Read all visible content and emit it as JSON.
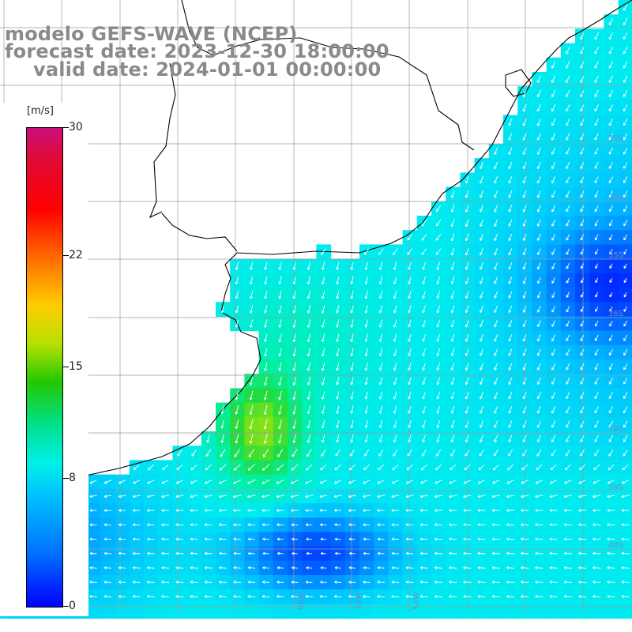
{
  "title": {
    "line1": "modelo GEFS-WAVE (NCEP)",
    "line2": "forecast date: 2023-12-30 18:00:00",
    "line3": "valid date: 2024-01-01 00:00:00"
  },
  "colorbar": {
    "unit": "[m/s]",
    "min": 0,
    "max": 30,
    "ticks": [
      {
        "value": 30,
        "label": "30"
      },
      {
        "value": 22,
        "label": "22"
      },
      {
        "value": 15,
        "label": "15"
      },
      {
        "value": 8,
        "label": "8"
      },
      {
        "value": 0,
        "label": "0"
      }
    ]
  },
  "map": {
    "variable": "wind speed and direction",
    "lat_labels": [
      "35S",
      "35S",
      "35S",
      "36S",
      "38S",
      "39S",
      "40S"
    ],
    "lon_labels": [
      "60W",
      "55W",
      "54W"
    ]
  }
}
